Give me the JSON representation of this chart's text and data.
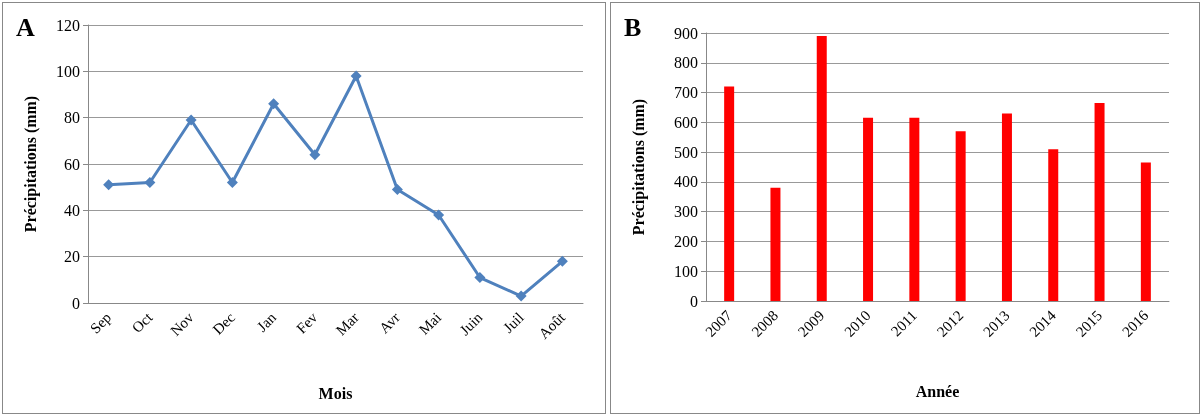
{
  "chart_data": [
    {
      "type": "line",
      "title": "A",
      "xlabel": "Mois",
      "ylabel": "Précipitations (mm)",
      "categories": [
        "Sep",
        "Oct",
        "Nov",
        "Dec",
        "Jan",
        "Fev",
        "Mar",
        "Avr",
        "Mai",
        "Juin",
        "Juil",
        "Août"
      ],
      "series": [
        {
          "color": "#4f81bd",
          "values": [
            51,
            52,
            79,
            52,
            86,
            64,
            98,
            49,
            38,
            11,
            3,
            18
          ]
        }
      ],
      "ylim": [
        0,
        120
      ],
      "yticks": [
        0,
        20,
        40,
        60,
        80,
        100,
        120
      ],
      "grid": "y",
      "marker": "diamond",
      "line_style": "solid"
    },
    {
      "type": "bar",
      "title": "B",
      "xlabel": "Année",
      "ylabel": "Précipitations (mm)",
      "categories": [
        "2007",
        "2008",
        "2009",
        "2010",
        "2011",
        "2012",
        "2013",
        "2014",
        "2015",
        "2016"
      ],
      "series": [
        {
          "color": "#ff0000",
          "values": [
            720,
            380,
            890,
            615,
            615,
            570,
            630,
            510,
            665,
            465
          ]
        }
      ],
      "ylim": [
        0,
        900
      ],
      "yticks": [
        0,
        100,
        200,
        300,
        400,
        500,
        600,
        700,
        800,
        900
      ],
      "grid": "y"
    }
  ]
}
